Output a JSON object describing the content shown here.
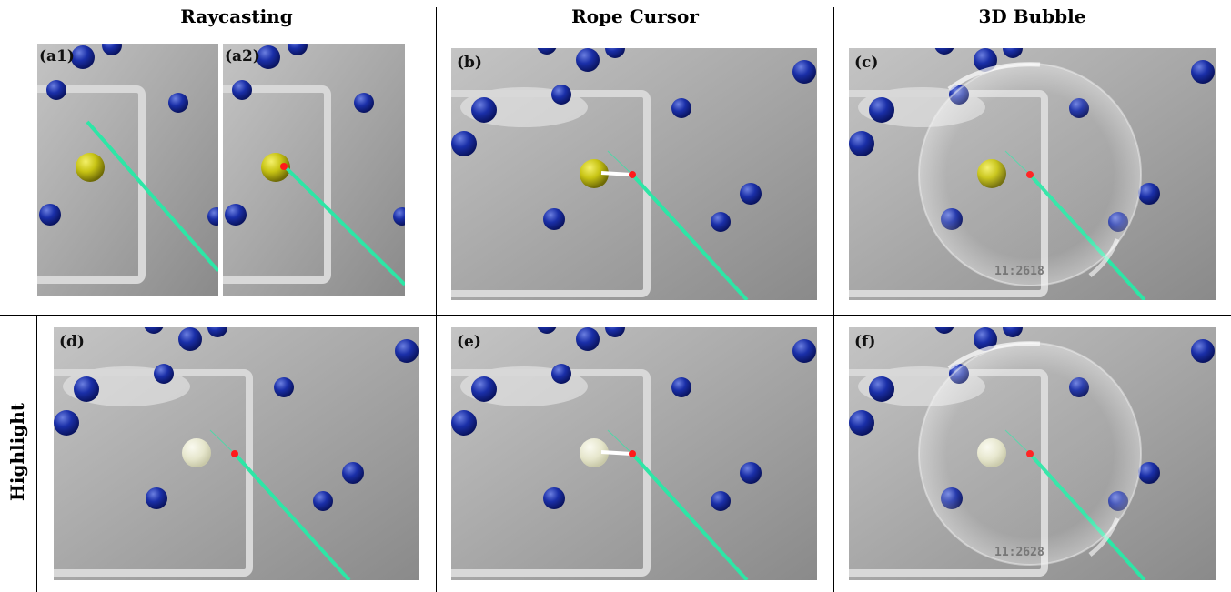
{
  "columns": [
    {
      "title": "Raycasting"
    },
    {
      "title": "Rope Cursor"
    },
    {
      "title": "3D Bubble"
    }
  ],
  "row_label": "Highlight",
  "panels": {
    "a1": {
      "label": "(a1)"
    },
    "a2": {
      "label": "(a2)"
    },
    "b": {
      "label": "(b)"
    },
    "c": {
      "label": "(c)",
      "clock": "11:2618"
    },
    "d": {
      "label": "(d)"
    },
    "e": {
      "label": "(e)"
    },
    "f": {
      "label": "(f)",
      "clock": "11:2628"
    }
  },
  "colors": {
    "target": "#c8c414",
    "target_highlight": "#e6e6cc",
    "distractor": "#1428a0",
    "ray": "#2de6a6",
    "cursor": "#ff1a1a"
  }
}
